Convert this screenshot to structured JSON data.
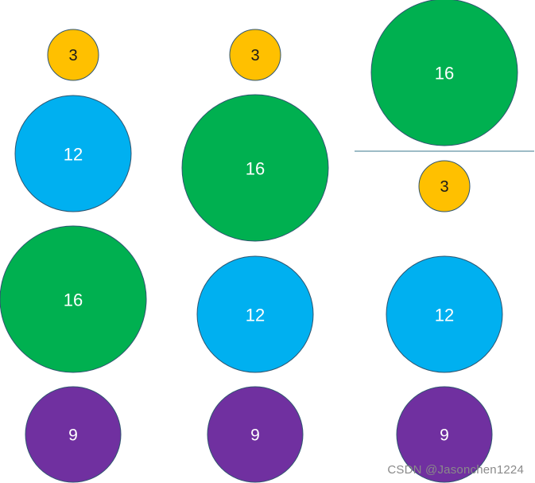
{
  "diagram": {
    "colors": {
      "size_3": "#FFC000",
      "size_12": "#00B0F0",
      "size_16": "#00B050",
      "size_9": "#7030A0",
      "outline": "#2F5570",
      "divider": "#3B7A8C"
    },
    "columns": [
      {
        "stack": [
          {
            "label": "3",
            "size": 3
          },
          {
            "label": "12",
            "size": 12
          },
          {
            "label": "16",
            "size": 16
          },
          {
            "label": "9",
            "size": 9
          }
        ]
      },
      {
        "stack": [
          {
            "label": "3",
            "size": 3
          },
          {
            "label": "16",
            "size": 16
          },
          {
            "label": "12",
            "size": 12
          },
          {
            "label": "9",
            "size": 9
          }
        ]
      },
      {
        "above_divider": [
          {
            "label": "16",
            "size": 16
          }
        ],
        "stack": [
          {
            "label": "3",
            "size": 3
          },
          {
            "label": "12",
            "size": 12
          },
          {
            "label": "9",
            "size": 9
          }
        ]
      }
    ]
  },
  "watermark": "CSDN @Jasonchen1224"
}
